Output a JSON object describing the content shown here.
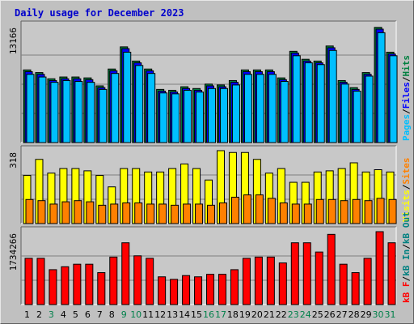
{
  "title": "Daily usage for December 2023",
  "colors": {
    "background": "#c0c0c0",
    "plot_bg": "#c8c8c8",
    "pages": "#00bfff",
    "files": "#0000ff",
    "hits": "#008040",
    "visits": "#ffff00",
    "sites": "#ff8000",
    "kb_in": "#008080",
    "kb_out": "#008080",
    "kb_f": "#ff0000",
    "title": "#0000cc"
  },
  "chart_data": [
    {
      "type": "bar",
      "name": "hits-files-pages",
      "x": [
        1,
        2,
        3,
        4,
        5,
        6,
        7,
        8,
        9,
        10,
        11,
        12,
        13,
        14,
        15,
        16,
        17,
        18,
        19,
        20,
        21,
        22,
        23,
        24,
        25,
        26,
        27,
        28,
        29,
        30,
        31
      ],
      "max_label": "13166",
      "ylim": [
        0,
        13166
      ],
      "legend": [
        {
          "text": "Pages",
          "color": "#00bfff"
        },
        {
          "text": "/",
          "color": "#000000"
        },
        {
          "text": "Files",
          "color": "#0000ff"
        },
        {
          "text": "/",
          "color": "#000000"
        },
        {
          "text": "Hits",
          "color": "#008040"
        }
      ],
      "series": [
        {
          "name": "Hits",
          "values": [
            8200,
            7900,
            7200,
            7400,
            7400,
            7300,
            6400,
            8300,
            10800,
            9200,
            8300,
            6000,
            5900,
            6300,
            6100,
            6600,
            6500,
            7000,
            8200,
            8200,
            8200,
            7300,
            10300,
            9400,
            9200,
            10900,
            7000,
            6200,
            7900,
            13000,
            10200
          ]
        },
        {
          "name": "Files",
          "values": [
            8000,
            7700,
            7000,
            7200,
            7200,
            7100,
            6200,
            8100,
            10600,
            9000,
            8100,
            5800,
            5700,
            6100,
            5900,
            6400,
            6300,
            6800,
            8000,
            8000,
            8000,
            7100,
            10100,
            9200,
            9000,
            10700,
            6800,
            6000,
            7700,
            12800,
            10000
          ]
        },
        {
          "name": "Pages",
          "values": [
            7700,
            7400,
            6800,
            7000,
            6900,
            6800,
            6000,
            7800,
            10200,
            8700,
            7800,
            5600,
            5500,
            5900,
            5700,
            6100,
            6100,
            6500,
            7700,
            7700,
            7700,
            6900,
            9800,
            9000,
            8800,
            10400,
            6600,
            5800,
            7500,
            12400,
            9800
          ]
        }
      ]
    },
    {
      "type": "bar",
      "name": "visits-sites",
      "x": [
        1,
        2,
        3,
        4,
        5,
        6,
        7,
        8,
        9,
        10,
        11,
        12,
        13,
        14,
        15,
        16,
        17,
        18,
        19,
        20,
        21,
        22,
        23,
        24,
        25,
        26,
        27,
        28,
        29,
        30,
        31
      ],
      "max_label": "318",
      "ylim": [
        0,
        318
      ],
      "legend": [
        {
          "text": "Visits",
          "color": "#ffff00"
        },
        {
          "text": "/",
          "color": "#000000"
        },
        {
          "text": "Sites",
          "color": "#ff8000"
        }
      ],
      "series": [
        {
          "name": "Visits",
          "values": [
            210,
            280,
            220,
            240,
            240,
            230,
            210,
            160,
            240,
            240,
            225,
            225,
            240,
            260,
            240,
            190,
            318,
            310,
            310,
            280,
            220,
            240,
            180,
            180,
            225,
            230,
            240,
            265,
            225,
            235,
            225
          ]
        },
        {
          "name": "Sites",
          "values": [
            105,
            100,
            85,
            95,
            100,
            95,
            80,
            85,
            90,
            90,
            85,
            85,
            80,
            85,
            85,
            80,
            90,
            115,
            125,
            125,
            110,
            90,
            85,
            85,
            105,
            105,
            100,
            105,
            100,
            110,
            105
          ]
        }
      ]
    },
    {
      "type": "bar",
      "name": "kbytes",
      "x": [
        1,
        2,
        3,
        4,
        5,
        6,
        7,
        8,
        9,
        10,
        11,
        12,
        13,
        14,
        15,
        16,
        17,
        18,
        19,
        20,
        21,
        22,
        23,
        24,
        25,
        26,
        27,
        28,
        29,
        30,
        31
      ],
      "max_label": "1734266",
      "ylim": [
        0,
        1734266
      ],
      "legend": [
        {
          "text": "kB F",
          "color": "#ff0000"
        },
        {
          "text": "/",
          "color": "#000000"
        },
        {
          "text": "kB In",
          "color": "#008080"
        },
        {
          "text": "/",
          "color": "#000000"
        },
        {
          "text": "kB Out",
          "color": "#008080"
        }
      ],
      "series": [
        {
          "name": "kB F",
          "values": [
            1100000,
            1100000,
            830000,
            900000,
            960000,
            960000,
            760000,
            1130000,
            1470000,
            1160000,
            1100000,
            660000,
            600000,
            690000,
            660000,
            720000,
            720000,
            830000,
            1100000,
            1130000,
            1130000,
            990000,
            1470000,
            1470000,
            1250000,
            1670000,
            960000,
            760000,
            1100000,
            1734266,
            1470000
          ]
        }
      ]
    }
  ],
  "x_labels": [
    {
      "text": "1",
      "color": "#000000"
    },
    {
      "text": "2",
      "color": "#000000"
    },
    {
      "text": "3",
      "color": "#00804a"
    },
    {
      "text": "4",
      "color": "#000000"
    },
    {
      "text": "5",
      "color": "#000000"
    },
    {
      "text": "6",
      "color": "#000000"
    },
    {
      "text": "7",
      "color": "#000000"
    },
    {
      "text": "8",
      "color": "#000000"
    },
    {
      "text": "9",
      "color": "#00804a"
    },
    {
      "text": "10",
      "color": "#00804a"
    },
    {
      "text": "11",
      "color": "#000000"
    },
    {
      "text": "12",
      "color": "#000000"
    },
    {
      "text": "13",
      "color": "#000000"
    },
    {
      "text": "14",
      "color": "#000000"
    },
    {
      "text": "15",
      "color": "#000000"
    },
    {
      "text": "16",
      "color": "#00804a"
    },
    {
      "text": "17",
      "color": "#00804a"
    },
    {
      "text": "18",
      "color": "#000000"
    },
    {
      "text": "19",
      "color": "#000000"
    },
    {
      "text": "20",
      "color": "#000000"
    },
    {
      "text": "21",
      "color": "#000000"
    },
    {
      "text": "22",
      "color": "#000000"
    },
    {
      "text": "23",
      "color": "#00804a"
    },
    {
      "text": "24",
      "color": "#00804a"
    },
    {
      "text": "25",
      "color": "#000000"
    },
    {
      "text": "26",
      "color": "#000000"
    },
    {
      "text": "27",
      "color": "#000000"
    },
    {
      "text": "28",
      "color": "#000000"
    },
    {
      "text": "29",
      "color": "#000000"
    },
    {
      "text": "30",
      "color": "#00804a"
    },
    {
      "text": "31",
      "color": "#00804a"
    }
  ]
}
